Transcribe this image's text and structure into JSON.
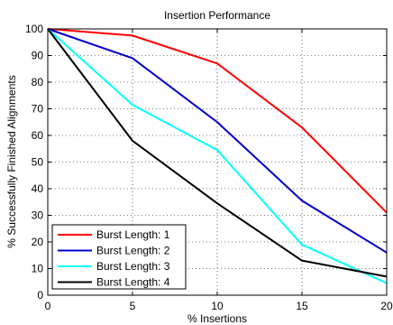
{
  "chart_data": {
    "type": "line",
    "title": "Insertion Performance",
    "xlabel": "% Insertions",
    "ylabel": "% Successfully Finished Alignments",
    "x": [
      0,
      5,
      10,
      15,
      20
    ],
    "xlim": [
      0,
      20
    ],
    "ylim": [
      0,
      100
    ],
    "xticks": [
      0,
      5,
      10,
      15,
      20
    ],
    "yticks": [
      0,
      10,
      20,
      30,
      40,
      50,
      60,
      70,
      80,
      90,
      100
    ],
    "grid": true,
    "legend_position": "bottom-left",
    "series": [
      {
        "name": "Burst Length: 1",
        "color": "#ff0000",
        "values": [
          100,
          97.5,
          87,
          63,
          31
        ]
      },
      {
        "name": "Burst Length: 2",
        "color": "#0000cc",
        "values": [
          100,
          89,
          65,
          35.5,
          16
        ]
      },
      {
        "name": "Burst Length: 3",
        "color": "#00ffff",
        "values": [
          100,
          71.5,
          54.5,
          19,
          4.5
        ]
      },
      {
        "name": "Burst Length: 4",
        "color": "#000000",
        "values": [
          100,
          58,
          34.5,
          13,
          7
        ]
      }
    ]
  }
}
